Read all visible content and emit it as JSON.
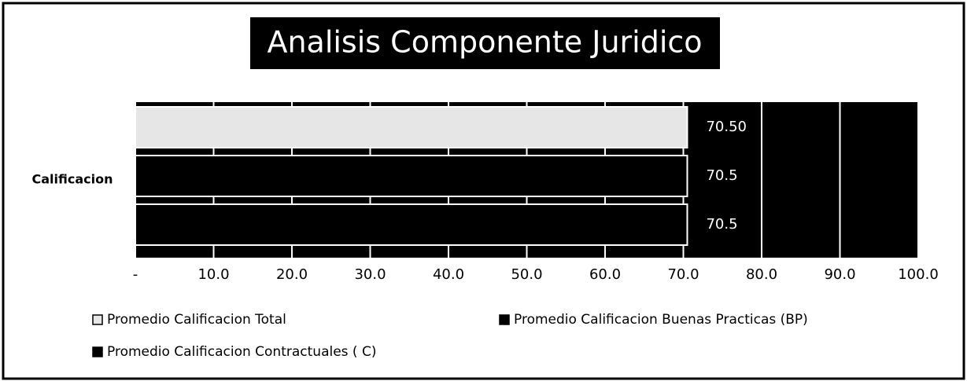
{
  "chart_data": {
    "type": "barh",
    "title": "Analisis Componente Juridico",
    "categories": [
      "Calificacion"
    ],
    "series": [
      {
        "name": "Promedio Calificacion Total",
        "color": "#e6e6e6",
        "values": [
          70.5
        ],
        "value_labels": [
          "70.50"
        ]
      },
      {
        "name": "Promedio Calificacion Buenas Practicas  (BP)",
        "color": "#000000",
        "values": [
          70.5
        ],
        "value_labels": [
          "70.5"
        ]
      },
      {
        "name": "Promedio Calificacion Contractuales ( C)",
        "color": "#000000",
        "values": [
          70.5
        ],
        "value_labels": [
          "70.5"
        ]
      }
    ],
    "xlim": [
      0,
      100
    ],
    "xticks": [
      {
        "value": 0,
        "label": "-"
      },
      {
        "value": 10,
        "label": "10.0"
      },
      {
        "value": 20,
        "label": "20.0"
      },
      {
        "value": 30,
        "label": "30.0"
      },
      {
        "value": 40,
        "label": "40.0"
      },
      {
        "value": 50,
        "label": "50.0"
      },
      {
        "value": 60,
        "label": "60.0"
      },
      {
        "value": 70,
        "label": "70.0"
      },
      {
        "value": 80,
        "label": "80.0"
      },
      {
        "value": 90,
        "label": "90.0"
      },
      {
        "value": 100,
        "label": "100.0"
      }
    ],
    "grid": true
  }
}
